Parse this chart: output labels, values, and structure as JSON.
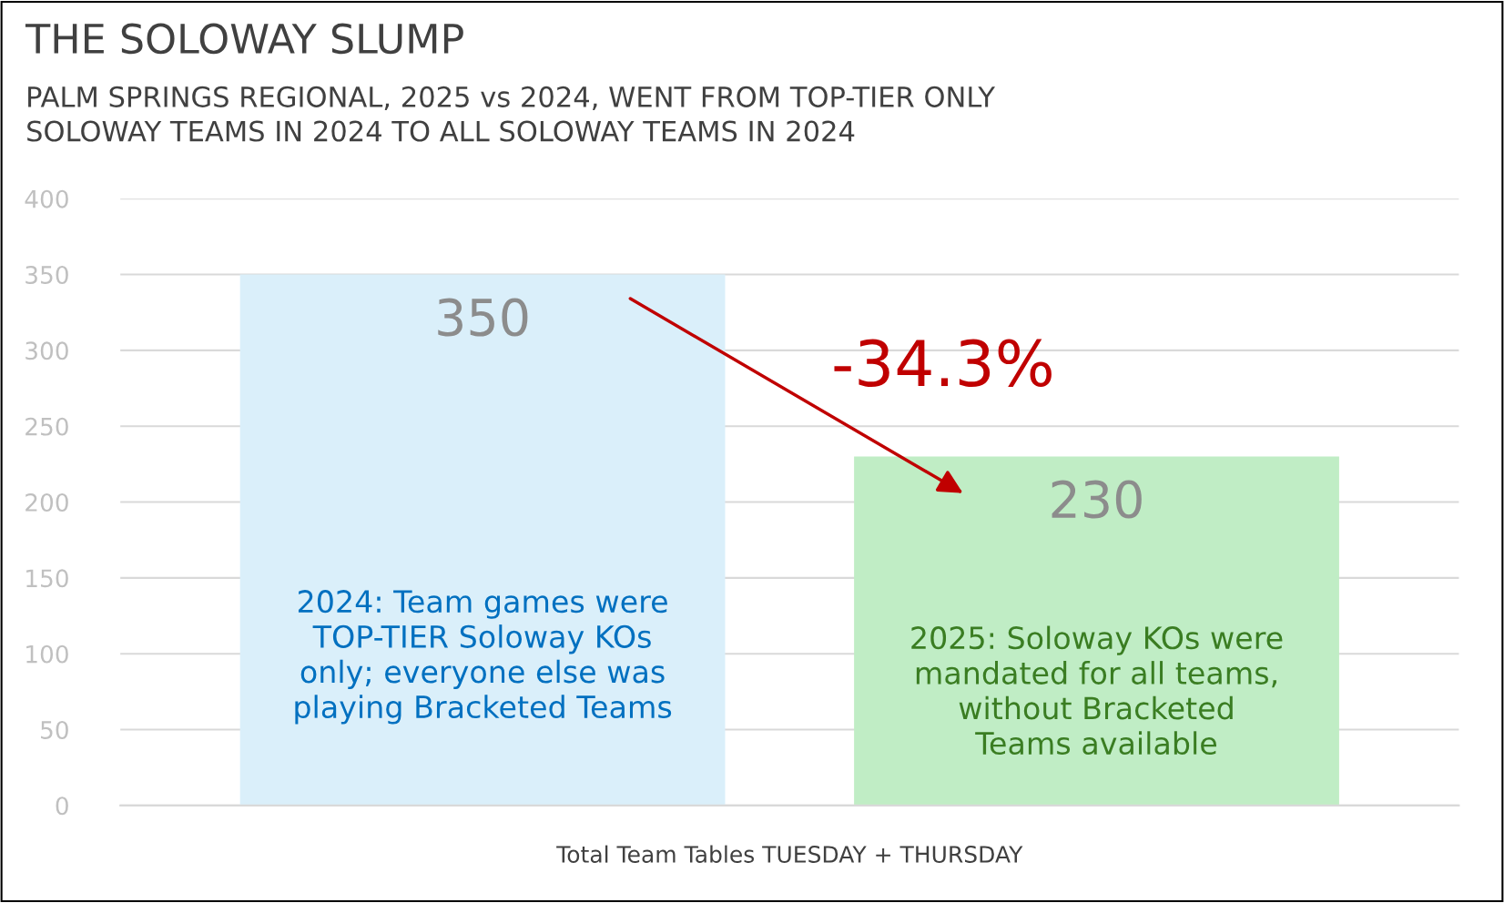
{
  "chart_data": {
    "type": "bar",
    "title": "THE SOLOWAY SLUMP",
    "subtitle": "PALM SPRINGS REGIONAL, 2025 vs 2024, WENT FROM TOP-TIER ONLY\nSOLOWAY TEAMS IN 2024 TO ALL SOLOWAY TEAMS IN 2024",
    "xlabel": "Total Team Tables TUESDAY + THURSDAY",
    "categories": [
      null,
      null
    ],
    "values": [
      350,
      230
    ],
    "colors": [
      "#daeffa",
      "#c0edc5"
    ],
    "data_labels": true,
    "ylim": [
      0,
      400
    ],
    "yticks": [
      0,
      50,
      100,
      150,
      200,
      250,
      300,
      350,
      400
    ],
    "grid": "y",
    "annotations": [
      "2024: Team games were\nTOP-TIER Soloway KOs\nonly; everyone else was\nplaying Bracketed Teams",
      "2025: Soloway KOs were\nmandated for all teams,\nwithout Bracketed\nTeams available",
      "-34.3%"
    ]
  }
}
